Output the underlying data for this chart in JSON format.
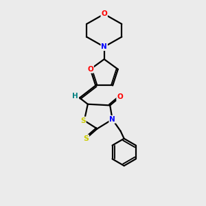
{
  "bg_color": "#ebebeb",
  "atom_colors": {
    "C": "#000000",
    "N": "#0000ff",
    "O": "#ff0000",
    "S": "#cccc00",
    "H": "#008080"
  },
  "bond_color": "#000000",
  "line_width": 1.6
}
